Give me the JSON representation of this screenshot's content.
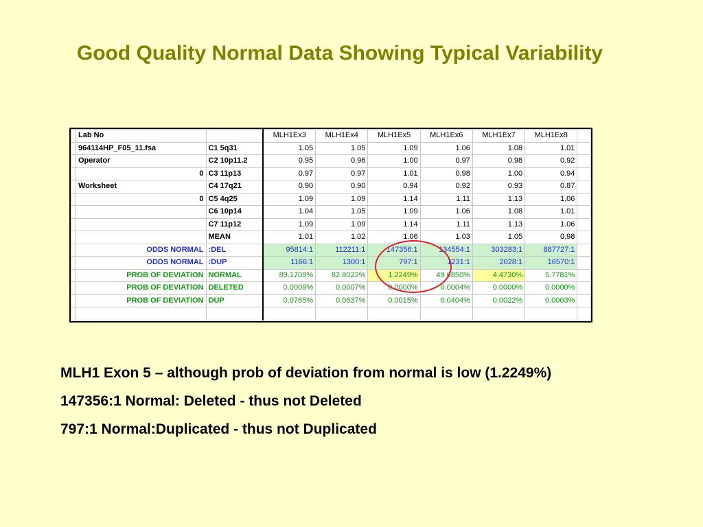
{
  "title": "Good Quality Normal Data Showing Typical Variability",
  "sheet": {
    "columns": [
      "MLH1Ex3",
      "MLH1Ex4",
      "MLH1Ex5",
      "MLH1Ex6",
      "MLH1Ex7",
      "MLH1Ex8"
    ],
    "rows": [
      {
        "a": "Lab No",
        "b": "",
        "vals": [
          "",
          "",
          "",
          "",
          "",
          ""
        ],
        "kind": "header"
      },
      {
        "a": "964114HP_F05_11.fsa",
        "b": "C1 5q31",
        "vals": [
          "1.05",
          "1.05",
          "1.09",
          "1.06",
          "1.08",
          "1.01"
        ],
        "kind": "data"
      },
      {
        "a": "Operator",
        "b": "C2 10p11.2",
        "vals": [
          "0.95",
          "0.96",
          "1.00",
          "0.97",
          "0.98",
          "0.92"
        ],
        "kind": "data"
      },
      {
        "a": "0",
        "b": "C3 11p13",
        "vals": [
          "0.97",
          "0.97",
          "1.01",
          "0.98",
          "1.00",
          "0.94"
        ],
        "kind": "data",
        "aright": true
      },
      {
        "a": "Worksheet",
        "b": "C4 17q21",
        "vals": [
          "0.90",
          "0.90",
          "0.94",
          "0.92",
          "0.93",
          "0.87"
        ],
        "kind": "data"
      },
      {
        "a": "0",
        "b": "C5 4q25",
        "vals": [
          "1.09",
          "1.09",
          "1.14",
          "1.11",
          "1.13",
          "1.06"
        ],
        "kind": "data",
        "aright": true
      },
      {
        "a": "",
        "b": "C6 10p14",
        "vals": [
          "1.04",
          "1.05",
          "1.09",
          "1.06",
          "1.08",
          "1.01"
        ],
        "kind": "data"
      },
      {
        "a": "",
        "b": "C7 11p12",
        "vals": [
          "1.09",
          "1.09",
          "1.14",
          "1.11",
          "1.13",
          "1.06"
        ],
        "kind": "data"
      },
      {
        "a": "",
        "b": "MEAN",
        "vals": [
          "1.01",
          "1.02",
          "1.06",
          "1.03",
          "1.05",
          "0.98"
        ],
        "kind": "data"
      },
      {
        "a": "ODDS NORMAL",
        "b": ":DEL",
        "vals": [
          "95814:1",
          "112211:1",
          "147356:1",
          "134554:1",
          "303283:1",
          "887727:1"
        ],
        "kind": "odds"
      },
      {
        "a": "ODDS NORMAL",
        "b": ":DUP",
        "vals": [
          "1166:1",
          "1300:1",
          "797:1",
          "1231:1",
          "2028:1",
          "16570:1"
        ],
        "kind": "odds"
      },
      {
        "a": "PROB OF DEVIATION",
        "b": "NORMAL",
        "vals": [
          "89.1709%",
          "82.8023%",
          "1.2249%",
          "49.6850%",
          "4.4730%",
          "5.7781%"
        ],
        "kind": "prob",
        "highlight": [
          2,
          4
        ]
      },
      {
        "a": "PROB OF DEVIATION",
        "b": "DELETED",
        "vals": [
          "0.0009%",
          "0.0007%",
          "0.0000%",
          "0.0004%",
          "0.0000%",
          "0.0000%"
        ],
        "kind": "prob"
      },
      {
        "a": "PROB OF DEVIATION",
        "b": "DUP",
        "vals": [
          "0.0765%",
          "0.0637%",
          "0.0015%",
          "0.0404%",
          "0.0022%",
          "0.0003%"
        ],
        "kind": "prob"
      },
      {
        "a": "",
        "b": "",
        "vals": [
          "",
          "",
          "",
          "",
          "",
          ""
        ],
        "kind": "empty"
      }
    ]
  },
  "notes": [
    "MLH1 Exon 5 – although prob of deviation from normal is low (1.2249%)",
    "147356:1 Normal: Deleted - thus not Deleted",
    "797:1 Normal:Duplicated - thus not Duplicated"
  ]
}
